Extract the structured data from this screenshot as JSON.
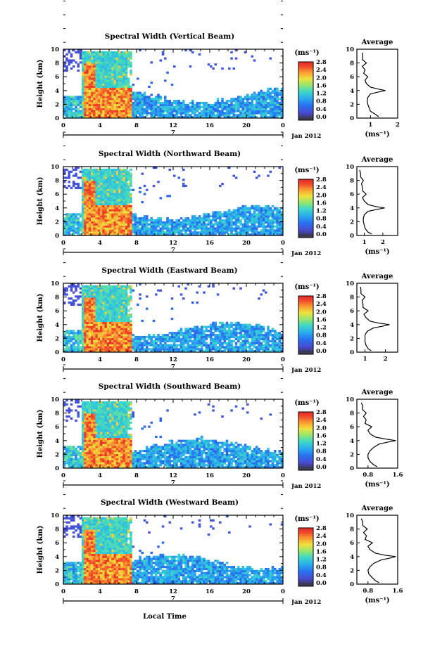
{
  "figure": {
    "date_label": "Jan 2012",
    "day_label": "7",
    "xlabel": "Local Time",
    "ylabel": "Height (km)",
    "unit_label": "(ms⁻¹)",
    "avg_title": "Average"
  },
  "chart_data": [
    {
      "type": "heatmap",
      "title": "Spectral Width (Vertical Beam)",
      "xlabel": "Local Time",
      "ylabel": "Height (km)",
      "xlim": [
        0,
        24
      ],
      "ylim": [
        0,
        10
      ],
      "x_ticks": [
        "0",
        "4",
        "8",
        "12",
        "16",
        "20",
        "0"
      ],
      "y_ticks": [
        "0",
        "2",
        "4",
        "6",
        "8",
        "10"
      ],
      "colorbar": {
        "label": "(ms⁻¹)",
        "range": [
          0,
          2.8
        ],
        "ticks": [
          "0.0",
          "0.4",
          "0.8",
          "1.2",
          "1.6",
          "2.0",
          "2.4",
          "2.8"
        ]
      },
      "average_profile": {
        "title": "Average",
        "xlabel": "(ms⁻¹)",
        "xlim": [
          0.5,
          2
        ],
        "x_ticks": [
          "1",
          "2"
        ],
        "height_km": [
          0.2,
          0.5,
          1,
          1.5,
          2,
          2.5,
          3,
          3.5,
          3.8,
          4,
          4.2,
          4.5,
          5,
          5.5,
          6,
          6.5,
          7,
          7.5,
          8,
          8.5,
          9,
          9.5
        ],
        "width_ms": [
          1.3,
          1.2,
          1.0,
          0.95,
          0.9,
          0.88,
          0.9,
          1.0,
          1.3,
          1.55,
          1.3,
          1.0,
          0.85,
          0.8,
          0.9,
          0.75,
          0.8,
          0.7,
          0.85,
          0.7,
          0.72,
          0.7
        ]
      }
    },
    {
      "type": "heatmap",
      "title": "Spectral Width (Northward Beam)",
      "xlabel": "Local Time",
      "ylabel": "Height (km)",
      "xlim": [
        0,
        24
      ],
      "ylim": [
        0,
        10
      ],
      "x_ticks": [
        "0",
        "4",
        "8",
        "12",
        "16",
        "20",
        "0"
      ],
      "y_ticks": [
        "0",
        "2",
        "4",
        "6",
        "8",
        "10"
      ],
      "colorbar": {
        "label": "(ms⁻¹)",
        "range": [
          0,
          2.8
        ],
        "ticks": [
          "0.0",
          "0.4",
          "0.8",
          "1.2",
          "1.6",
          "2.0",
          "2.4",
          "2.8"
        ]
      },
      "average_profile": {
        "title": "Average",
        "xlabel": "(ms⁻¹)",
        "xlim": [
          0.6,
          2.8
        ],
        "x_ticks": [
          "1",
          "2"
        ],
        "height_km": [
          0.2,
          0.5,
          1,
          1.5,
          2,
          2.5,
          3,
          3.5,
          3.8,
          4,
          4.2,
          4.5,
          5,
          5.5,
          6,
          6.5,
          7,
          7.5,
          8,
          8.5,
          9,
          9.5
        ],
        "width_ms": [
          1.4,
          1.2,
          1.05,
          1.0,
          0.95,
          0.95,
          1.0,
          1.2,
          1.7,
          2.1,
          1.6,
          1.2,
          1.0,
          0.9,
          1.1,
          0.9,
          0.9,
          0.85,
          0.95,
          0.8,
          0.8,
          0.75
        ]
      }
    },
    {
      "type": "heatmap",
      "title": "Spectral Width (Eastward Beam)",
      "xlabel": "Local Time",
      "ylabel": "Height (km)",
      "xlim": [
        0,
        24
      ],
      "ylim": [
        0,
        10
      ],
      "x_ticks": [
        "0",
        "4",
        "8",
        "12",
        "16",
        "20",
        "0"
      ],
      "y_ticks": [
        "0",
        "2",
        "4",
        "6",
        "8",
        "10"
      ],
      "colorbar": {
        "label": "(ms⁻¹)",
        "range": [
          0,
          2.8
        ],
        "ticks": [
          "0.0",
          "0.4",
          "0.8",
          "1.2",
          "1.6",
          "2.0",
          "2.4",
          "2.8"
        ]
      },
      "average_profile": {
        "title": "Average",
        "xlabel": "",
        "xlim": [
          0.6,
          2.6
        ],
        "x_ticks": [
          "1",
          "2"
        ],
        "height_km": [
          0.2,
          0.5,
          1,
          1.5,
          2,
          2.5,
          3,
          3.5,
          3.8,
          4,
          4.2,
          4.5,
          5,
          5.5,
          6,
          6.5,
          7,
          7.5,
          8,
          8.5,
          9,
          9.5
        ],
        "width_ms": [
          1.3,
          1.15,
          1.05,
          1.0,
          1.0,
          1.0,
          1.1,
          1.4,
          1.9,
          2.2,
          1.7,
          1.25,
          1.05,
          0.95,
          1.15,
          0.9,
          0.9,
          0.85,
          1.0,
          0.8,
          0.8,
          0.78
        ]
      }
    },
    {
      "type": "heatmap",
      "title": "Spectral Width (Southward Beam)",
      "xlabel": "Local Time",
      "ylabel": "Height (km)",
      "xlim": [
        0,
        24
      ],
      "ylim": [
        0,
        10
      ],
      "x_ticks": [
        "0",
        "4",
        "8",
        "12",
        "16",
        "20",
        "0"
      ],
      "y_ticks": [
        "0",
        "2",
        "4",
        "6",
        "8",
        "10"
      ],
      "colorbar": {
        "label": "(ms⁻¹)",
        "range": [
          0,
          2.8
        ],
        "ticks": [
          "0.0",
          "0.4",
          "0.8",
          "1.2",
          "1.6",
          "2.0",
          "2.4",
          "2.8"
        ]
      },
      "average_profile": {
        "title": "Average",
        "xlabel": "(ms⁻¹)",
        "xlim": [
          0.5,
          1.6
        ],
        "x_ticks": [
          "0.8",
          "1.6"
        ],
        "height_km": [
          0.2,
          0.5,
          1,
          1.5,
          2,
          2.5,
          3,
          3.5,
          3.8,
          4,
          4.2,
          4.5,
          5,
          5.5,
          6,
          6.5,
          7,
          7.5,
          8,
          8.5,
          9,
          9.5
        ],
        "width_ms": [
          1.05,
          0.95,
          0.85,
          0.8,
          0.8,
          0.85,
          0.95,
          1.1,
          1.35,
          1.55,
          1.3,
          1.0,
          0.85,
          0.8,
          0.9,
          0.72,
          0.75,
          0.68,
          0.75,
          0.65,
          0.66,
          0.62
        ]
      }
    },
    {
      "type": "heatmap",
      "title": "Spectral Width (Westward Beam)",
      "xlabel": "Local Time",
      "ylabel": "Height (km)",
      "xlim": [
        0,
        24
      ],
      "ylim": [
        0,
        10
      ],
      "x_ticks": [
        "0",
        "4",
        "8",
        "12",
        "16",
        "20",
        "0"
      ],
      "y_ticks": [
        "0",
        "2",
        "4",
        "6",
        "8",
        "10"
      ],
      "colorbar": {
        "label": "(ms⁻¹)",
        "range": [
          0,
          2.8
        ],
        "ticks": [
          "0.0",
          "0.4",
          "0.8",
          "1.2",
          "1.6",
          "2.0",
          "2.4",
          "2.8"
        ]
      },
      "average_profile": {
        "title": "Average",
        "xlabel": "(ms⁻¹)",
        "xlim": [
          0.5,
          1.6
        ],
        "x_ticks": [
          "0.8",
          "1.6"
        ],
        "height_km": [
          0.2,
          0.5,
          1,
          1.5,
          2,
          2.5,
          3,
          3.5,
          3.8,
          4,
          4.2,
          4.5,
          5,
          5.5,
          6,
          6.5,
          7,
          7.5,
          8,
          8.5,
          9,
          9.5
        ],
        "width_ms": [
          1.1,
          1.0,
          0.9,
          0.82,
          0.8,
          0.85,
          0.95,
          1.15,
          1.4,
          1.55,
          1.25,
          1.0,
          0.85,
          0.8,
          0.92,
          0.72,
          0.76,
          0.68,
          0.78,
          0.66,
          0.66,
          0.62
        ]
      }
    }
  ]
}
